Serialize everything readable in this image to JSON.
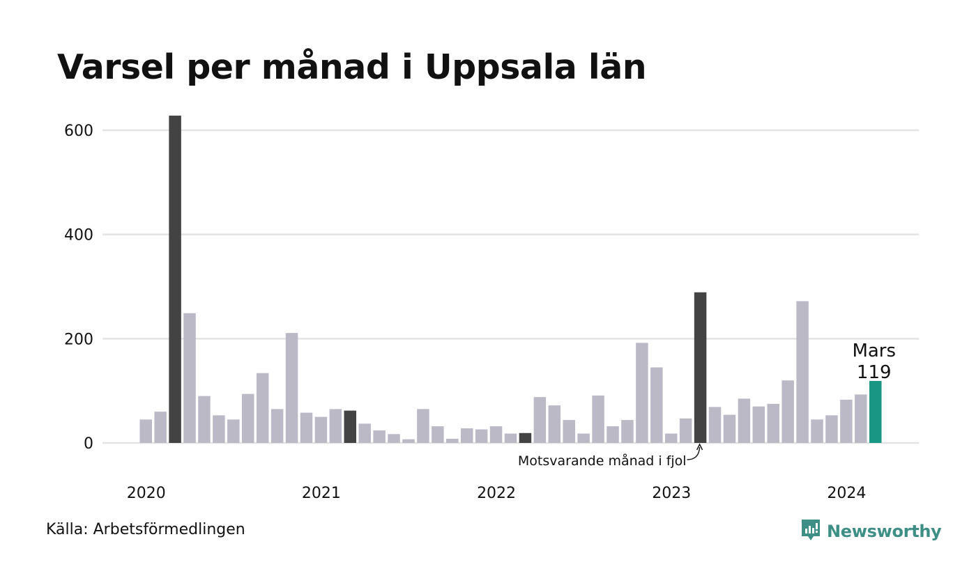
{
  "title": "Varsel per månad i Uppsala län",
  "source": "Källa: Arbetsförmedlingen",
  "brand": {
    "name": "Newsworthy",
    "icon": "newsworthy-logo-icon",
    "color": "#3d8f86"
  },
  "annotations": {
    "last_label": "Mars",
    "last_value": "119",
    "comparison_note": "Motsvarande månad i fjol"
  },
  "colors": {
    "default": "#bbb9c6",
    "highlight": "#434343",
    "current": "#1a9685",
    "grid": "#e3e3e6"
  },
  "chart_data": {
    "type": "bar",
    "title": "Varsel per månad i Uppsala län",
    "ylim": [
      0,
      650
    ],
    "y_ticks": [
      0,
      200,
      400,
      600
    ],
    "y_tick_labels": [
      "0",
      "200",
      "400",
      "600"
    ],
    "x_tick_labels": [
      "2020",
      "2021",
      "2022",
      "2023",
      "2024"
    ],
    "x_tick_months": [
      "2020-01",
      "2021-01",
      "2022-01",
      "2023-01",
      "2024-01"
    ],
    "grid": "horizontal",
    "categories": [
      "2020-01",
      "2020-02",
      "2020-03",
      "2020-04",
      "2020-05",
      "2020-06",
      "2020-07",
      "2020-08",
      "2020-09",
      "2020-10",
      "2020-11",
      "2020-12",
      "2021-01",
      "2021-02",
      "2021-03",
      "2021-04",
      "2021-05",
      "2021-06",
      "2021-07",
      "2021-08",
      "2021-09",
      "2021-10",
      "2021-11",
      "2021-12",
      "2022-01",
      "2022-02",
      "2022-03",
      "2022-04",
      "2022-05",
      "2022-06",
      "2022-07",
      "2022-08",
      "2022-09",
      "2022-10",
      "2022-11",
      "2022-12",
      "2023-01",
      "2023-02",
      "2023-03",
      "2023-04",
      "2023-05",
      "2023-06",
      "2023-07",
      "2023-08",
      "2023-09",
      "2023-10",
      "2023-11",
      "2023-12",
      "2024-01",
      "2024-02",
      "2024-03"
    ],
    "values": [
      45,
      60,
      628,
      249,
      90,
      53,
      45,
      94,
      134,
      65,
      211,
      58,
      50,
      65,
      62,
      37,
      24,
      17,
      7,
      65,
      32,
      8,
      28,
      26,
      32,
      18,
      19,
      88,
      72,
      44,
      18,
      91,
      32,
      44,
      192,
      145,
      18,
      47,
      289,
      69,
      54,
      85,
      70,
      75,
      120,
      272,
      45,
      53,
      83,
      93,
      119
    ],
    "highlight_months": [
      "2020-03",
      "2021-03",
      "2022-03",
      "2023-03"
    ],
    "current_month": "2024-03"
  }
}
